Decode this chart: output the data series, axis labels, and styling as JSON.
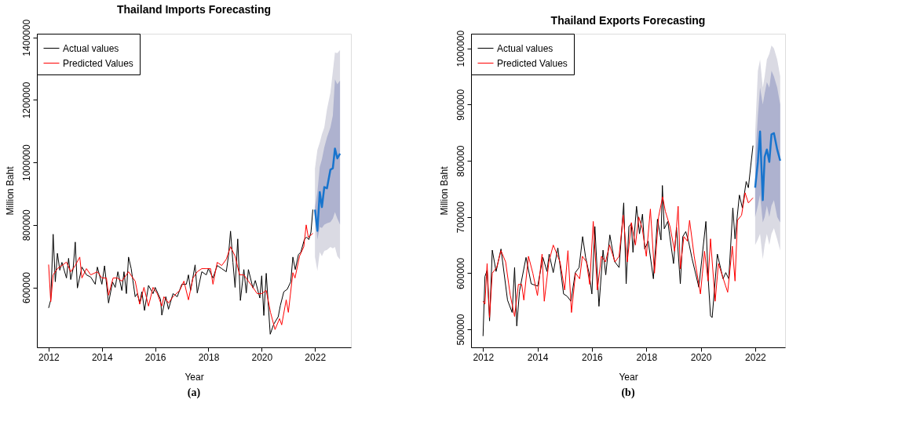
{
  "chart_data": [
    {
      "type": "line",
      "title": "Thailand Imports Forecasting",
      "xlabel": "Year",
      "ylabel": "Million Baht",
      "xlim": [
        2011.56,
        2023.35
      ],
      "ylim": [
        408000,
        1412000
      ],
      "xticks": [
        2012,
        2014,
        2016,
        2018,
        2020,
        2022
      ],
      "yticks": [
        600000,
        800000,
        1000000,
        1200000,
        1400000
      ],
      "grid": false,
      "legend": "top left",
      "annotations": [
        "(a)"
      ],
      "series": [
        {
          "type": "area",
          "color": "#dadae3",
          "x": [
            2022.0,
            2022.09,
            2022.18,
            2022.26,
            2022.35,
            2022.45,
            2022.58,
            2022.67,
            2022.75,
            2022.84,
            2022.94
          ],
          "values": [
            null,
            null,
            null,
            null,
            null,
            null,
            null,
            null,
            null,
            null,
            null
          ],
          "lower": [
            697000,
            653000,
            713000,
            700000,
            717000,
            720000,
            729000,
            725000,
            729000,
            700000,
            689000
          ],
          "upper": [
            981000,
            1040000,
            1064000,
            1090000,
            1112000,
            1170000,
            1224000,
            1290000,
            1352000,
            1350000,
            1360000
          ]
        },
        {
          "type": "area",
          "color": "#aeb2cf",
          "x": [
            2022.0,
            2022.09,
            2022.18,
            2022.26,
            2022.35,
            2022.45,
            2022.58,
            2022.67,
            2022.75,
            2022.84,
            2022.94
          ],
          "values": [
            null,
            null,
            null,
            null,
            null,
            null,
            null,
            null,
            null,
            null,
            null
          ],
          "lower": [
            840000,
            753000,
            793000,
            790000,
            801000,
            805000,
            809000,
            820000,
            841000,
            820000,
            801000
          ],
          "upper": [
            857000,
            905000,
            985000,
            1010000,
            1048000,
            1080000,
            1112000,
            1150000,
            1266000,
            1250000,
            1262000
          ]
        },
        {
          "name": "Actual values",
          "color": "#000000",
          "x": [
            2012.0,
            2012.08,
            2012.17,
            2012.25,
            2012.33,
            2012.42,
            2012.5,
            2012.67,
            2012.75,
            2012.83,
            2012.92,
            2013.0,
            2013.08,
            2013.25,
            2013.42,
            2013.58,
            2013.75,
            2013.83,
            2014.0,
            2014.1,
            2014.25,
            2014.4,
            2014.5,
            2014.6,
            2014.75,
            2014.83,
            2014.92,
            2015.0,
            2015.1,
            2015.25,
            2015.33,
            2015.42,
            2015.5,
            2015.6,
            2015.75,
            2015.92,
            2016.0,
            2016.2,
            2016.25,
            2016.4,
            2016.5,
            2016.67,
            2016.83,
            2017.0,
            2017.17,
            2017.25,
            2017.33,
            2017.5,
            2017.58,
            2017.75,
            2017.92,
            2018.0,
            2018.17,
            2018.33,
            2018.5,
            2018.67,
            2018.75,
            2018.83,
            2018.92,
            2019.0,
            2019.1,
            2019.2,
            2019.33,
            2019.42,
            2019.5,
            2019.67,
            2019.76,
            2019.93,
            2020.0,
            2020.08,
            2020.17,
            2020.32,
            2020.45,
            2020.62,
            2020.7,
            2020.83,
            2020.96,
            2021.09,
            2021.17,
            2021.26,
            2021.38,
            2021.47,
            2021.6,
            2021.68,
            2021.77,
            2021.85,
            2021.92
          ],
          "values": [
            534000,
            560000,
            770000,
            618000,
            709000,
            655000,
            680000,
            630000,
            693000,
            625000,
            660000,
            745000,
            598000,
            665000,
            640000,
            633000,
            610000,
            665000,
            610000,
            669000,
            550000,
            617000,
            600000,
            650000,
            590000,
            650000,
            580000,
            697000,
            660000,
            570000,
            580000,
            550000,
            586000,
            526000,
            606000,
            580000,
            600000,
            562000,
            511000,
            570000,
            530000,
            580000,
            570000,
            610000,
            610000,
            640000,
            590000,
            672000,
            582000,
            650000,
            640000,
            660000,
            630000,
            670000,
            660000,
            650000,
            700000,
            780000,
            680000,
            600000,
            755000,
            558000,
            657000,
            582000,
            657000,
            598000,
            622000,
            566000,
            637000,
            510000,
            645000,
            450000,
            482000,
            506000,
            542000,
            586000,
            594000,
            618000,
            697000,
            657000,
            705000,
            713000,
            753000,
            761000,
            753000,
            777000,
            849000
          ]
        },
        {
          "name": "Predicted Values",
          "color": "#ff0000",
          "x": [
            2012.0,
            2012.08,
            2012.17,
            2012.33,
            2012.5,
            2012.67,
            2012.83,
            2013.0,
            2013.17,
            2013.25,
            2013.42,
            2013.58,
            2013.83,
            2014.0,
            2014.17,
            2014.25,
            2014.42,
            2014.58,
            2014.75,
            2015.0,
            2015.25,
            2015.42,
            2015.58,
            2015.75,
            2015.92,
            2016.08,
            2016.25,
            2016.33,
            2016.5,
            2016.67,
            2016.92,
            2017.08,
            2017.25,
            2017.42,
            2017.58,
            2017.75,
            2017.92,
            2018.08,
            2018.17,
            2018.33,
            2018.5,
            2018.67,
            2018.83,
            2019.0,
            2019.17,
            2019.33,
            2019.5,
            2019.67,
            2019.83,
            2020.0,
            2020.17,
            2020.33,
            2020.5,
            2020.67,
            2020.75,
            2020.92,
            2021.0,
            2021.17,
            2021.25,
            2021.42,
            2021.58,
            2021.67,
            2021.75,
            2021.92
          ],
          "values": [
            673000,
            554000,
            640000,
            660000,
            670000,
            681000,
            650000,
            670000,
            697000,
            630000,
            660000,
            640000,
            650000,
            630000,
            630000,
            575000,
            630000,
            630000,
            620000,
            650000,
            620000,
            546000,
            600000,
            540000,
            600000,
            580000,
            540000,
            570000,
            550000,
            570000,
            590000,
            620000,
            560000,
            630000,
            650000,
            660000,
            660000,
            660000,
            610000,
            680000,
            670000,
            690000,
            730000,
            700000,
            640000,
            640000,
            620000,
            600000,
            580000,
            580000,
            590000,
            520000,
            465000,
            500000,
            480000,
            560000,
            520000,
            647000,
            630000,
            700000,
            730000,
            800000,
            760000,
            773000
          ]
        },
        {
          "color": "#1874cd",
          "x": [
            2022.0,
            2022.09,
            2022.18,
            2022.26,
            2022.35,
            2022.45,
            2022.58,
            2022.67,
            2022.75,
            2022.84,
            2022.94
          ],
          "values": [
            849000,
            781000,
            905000,
            857000,
            921000,
            917000,
            977000,
            981000,
            1044000,
            1013000,
            1028000
          ]
        }
      ]
    },
    {
      "type": "line",
      "title": "Thailand Exports Forecasting",
      "xlabel": "Year",
      "ylabel": "Million Baht",
      "xlim": [
        2011.56,
        2023.1
      ],
      "ylim": [
        468000,
        1026000
      ],
      "xticks": [
        2012,
        2014,
        2016,
        2018,
        2020,
        2022
      ],
      "yticks": [
        500000,
        600000,
        700000,
        800000,
        900000,
        1000000
      ],
      "grid": false,
      "legend": "top left",
      "annotations": [
        "(b)"
      ],
      "series": [
        {
          "type": "area",
          "color": "#dadae3",
          "x": [
            2022.0,
            2022.1,
            2022.18,
            2022.28,
            2022.35,
            2022.43,
            2022.52,
            2022.6,
            2022.69,
            2022.81,
            2022.92
          ],
          "values": [
            null,
            null,
            null,
            null,
            null,
            null,
            null,
            null,
            null,
            null,
            null
          ],
          "lower": [
            650000,
            660000,
            670000,
            625000,
            650000,
            670000,
            650000,
            670000,
            680000,
            660000,
            640000
          ],
          "upper": [
            850000,
            960000,
            980000,
            930000,
            950000,
            980000,
            990000,
            1005000,
            1000000,
            980000,
            950000
          ]
        },
        {
          "type": "area",
          "color": "#aeb2cf",
          "x": [
            2022.0,
            2022.1,
            2022.18,
            2022.28,
            2022.35,
            2022.43,
            2022.52,
            2022.6,
            2022.69,
            2022.81,
            2022.92
          ],
          "values": [
            null,
            null,
            null,
            null,
            null,
            null,
            null,
            null,
            null,
            null,
            null
          ],
          "lower": [
            700000,
            720000,
            740000,
            690000,
            700000,
            720000,
            700000,
            720000,
            730000,
            700000,
            690000
          ],
          "upper": [
            800000,
            880000,
            930000,
            900000,
            920000,
            940000,
            930000,
            960000,
            950000,
            930000,
            900000
          ]
        },
        {
          "name": "Actual values",
          "color": "#000000",
          "x": [
            2012.0,
            2012.07,
            2012.15,
            2012.24,
            2012.34,
            2012.48,
            2012.66,
            2012.9,
            2013.07,
            2013.16,
            2013.24,
            2013.34,
            2013.58,
            2013.77,
            2014.01,
            2014.2,
            2014.35,
            2014.43,
            2014.58,
            2014.75,
            2014.96,
            2015.09,
            2015.23,
            2015.39,
            2015.53,
            2015.66,
            2015.77,
            2015.9,
            2016.0,
            2016.11,
            2016.26,
            2016.41,
            2016.51,
            2016.66,
            2016.83,
            2017.0,
            2017.17,
            2017.26,
            2017.36,
            2017.45,
            2017.51,
            2017.64,
            2017.75,
            2017.86,
            2017.94,
            2018.07,
            2018.26,
            2018.41,
            2018.54,
            2018.59,
            2018.66,
            2018.79,
            2019.0,
            2019.11,
            2019.25,
            2019.34,
            2019.45,
            2019.55,
            2019.68,
            2019.93,
            2020.19,
            2020.27,
            2020.36,
            2020.42,
            2020.61,
            2020.82,
            2020.92,
            2021.03,
            2021.18,
            2021.26,
            2021.42,
            2021.53,
            2021.67,
            2021.75,
            2021.92
          ],
          "values": [
            488000,
            594000,
            605000,
            515000,
            641000,
            603000,
            643000,
            552000,
            530000,
            610000,
            506000,
            568000,
            628000,
            581000,
            577000,
            628000,
            603000,
            634000,
            601000,
            645000,
            563000,
            559000,
            550000,
            601000,
            610000,
            665000,
            628000,
            599000,
            563000,
            683000,
            541000,
            641000,
            597000,
            668000,
            621000,
            610000,
            725000,
            581000,
            683000,
            688000,
            637000,
            719000,
            670000,
            705000,
            643000,
            657000,
            590000,
            696000,
            659000,
            756000,
            679000,
            692000,
            617000,
            681000,
            581000,
            665000,
            674000,
            657000,
            626000,
            575000,
            692000,
            594000,
            524000,
            521000,
            634000,
            590000,
            601000,
            590000,
            716000,
            661000,
            739000,
            716000,
            763000,
            752000,
            827000
          ]
        },
        {
          "name": "Predicted Values",
          "color": "#ff0000",
          "x": [
            2012.0,
            2012.07,
            2012.15,
            2012.24,
            2012.34,
            2012.5,
            2012.66,
            2012.83,
            2013.0,
            2013.16,
            2013.3,
            2013.42,
            2013.5,
            2013.67,
            2013.83,
            2014.0,
            2014.17,
            2014.25,
            2014.42,
            2014.58,
            2014.83,
            2015.0,
            2015.12,
            2015.25,
            2015.4,
            2015.55,
            2015.65,
            2015.8,
            2015.92,
            2016.05,
            2016.2,
            2016.35,
            2016.5,
            2016.65,
            2016.85,
            2017.0,
            2017.15,
            2017.3,
            2017.45,
            2017.6,
            2017.72,
            2017.85,
            2018.0,
            2018.15,
            2018.3,
            2018.45,
            2018.6,
            2018.7,
            2018.87,
            2019.04,
            2019.17,
            2019.25,
            2019.38,
            2019.51,
            2019.59,
            2019.76,
            2019.99,
            2020.06,
            2020.14,
            2020.27,
            2020.36,
            2020.53,
            2020.65,
            2020.99,
            2021.16,
            2021.26,
            2021.35,
            2021.5,
            2021.63,
            2021.75,
            2021.92
          ],
          "values": [
            550000,
            545000,
            617000,
            521000,
            600000,
            610000,
            640000,
            620000,
            561000,
            523000,
            580000,
            580000,
            552000,
            630000,
            600000,
            560000,
            634000,
            550000,
            620000,
            650000,
            620000,
            570000,
            640000,
            530000,
            600000,
            590000,
            630000,
            620000,
            580000,
            692000,
            570000,
            630000,
            620000,
            650000,
            620000,
            630000,
            703000,
            620000,
            690000,
            650000,
            700000,
            680000,
            630000,
            714000,
            600000,
            700000,
            736000,
            710000,
            683000,
            639000,
            719000,
            608000,
            665000,
            657000,
            694000,
            630000,
            563000,
            599000,
            639000,
            586000,
            661000,
            550000,
            617000,
            566000,
            648000,
            586000,
            694000,
            703000,
            743000,
            725000,
            734000
          ]
        },
        {
          "color": "#1874cd",
          "x": [
            2022.0,
            2022.1,
            2022.18,
            2022.28,
            2022.35,
            2022.43,
            2022.52,
            2022.6,
            2022.69,
            2022.81,
            2022.92
          ],
          "values": [
            752000,
            798000,
            852000,
            730000,
            807000,
            820000,
            798000,
            847000,
            849000,
            820000,
            800000
          ]
        }
      ]
    }
  ]
}
